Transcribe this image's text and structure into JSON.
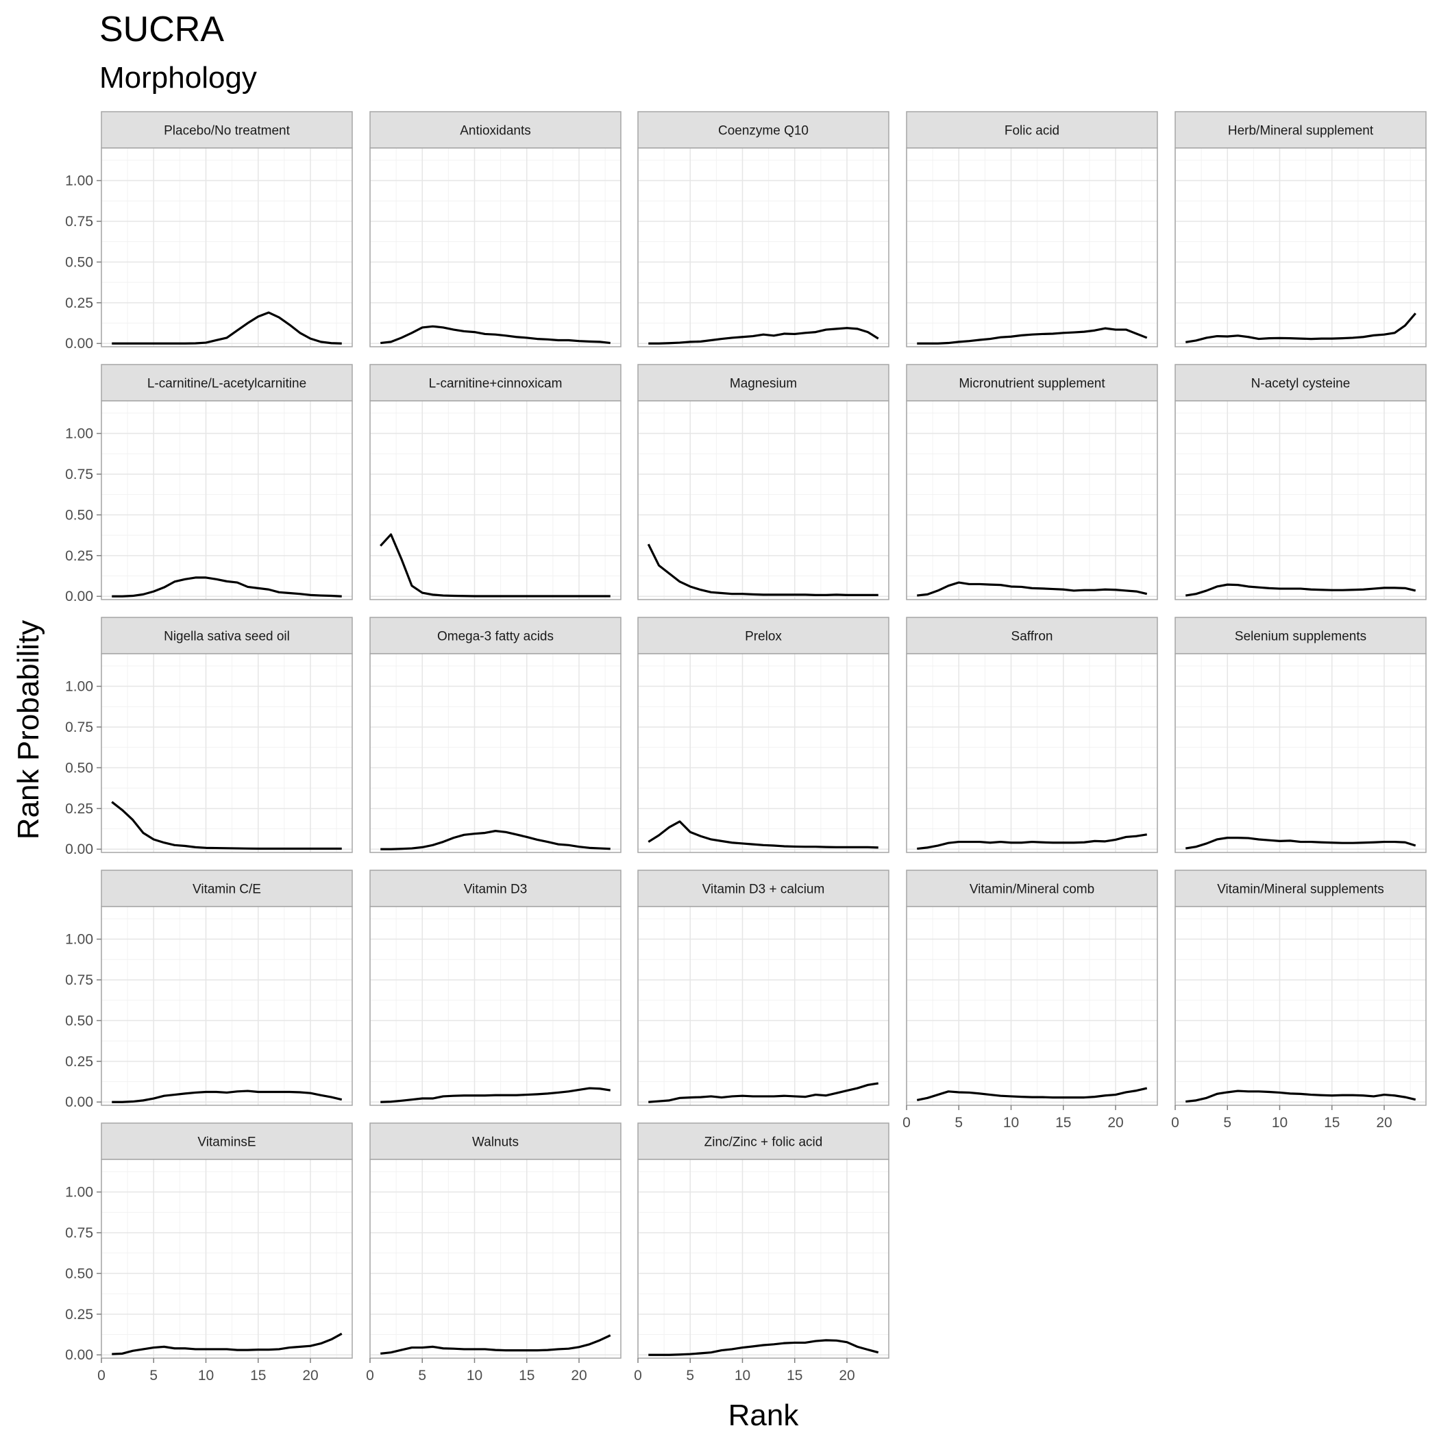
{
  "chart_data": {
    "type": "line",
    "title": "SUCRA",
    "subtitle": "Morphology",
    "xlabel": "Rank",
    "ylabel": "Rank Probability",
    "xlim": [
      0,
      24
    ],
    "ylim": [
      -0.02,
      1.2
    ],
    "x_ticks": [
      0,
      5,
      10,
      15,
      20
    ],
    "y_ticks": [
      0.0,
      0.25,
      0.5,
      0.75,
      1.0
    ],
    "y_tick_labels": [
      "0.00",
      "0.25",
      "0.50",
      "0.75",
      "1.00"
    ],
    "grid": true,
    "legend": "none",
    "x": [
      1,
      2,
      3,
      4,
      5,
      6,
      7,
      8,
      9,
      10,
      11,
      12,
      13,
      14,
      15,
      16,
      17,
      18,
      19,
      20,
      21,
      22,
      23
    ],
    "series": [
      {
        "name": "Placebo/No treatment",
        "values": [
          0,
          0,
          0,
          0,
          0,
          0,
          0,
          0,
          0.001,
          0.005,
          0.02,
          0.035,
          0.08,
          0.125,
          0.165,
          0.19,
          0.16,
          0.115,
          0.065,
          0.03,
          0.01,
          0.002,
          0
        ]
      },
      {
        "name": "Antioxidants",
        "values": [
          0.003,
          0.01,
          0.035,
          0.065,
          0.098,
          0.105,
          0.098,
          0.085,
          0.075,
          0.07,
          0.058,
          0.055,
          0.048,
          0.04,
          0.035,
          0.028,
          0.025,
          0.02,
          0.02,
          0.015,
          0.012,
          0.01,
          0.003
        ]
      },
      {
        "name": "Coenzyme Q10",
        "values": [
          0,
          0,
          0.002,
          0.005,
          0.01,
          0.012,
          0.02,
          0.028,
          0.035,
          0.04,
          0.045,
          0.055,
          0.048,
          0.06,
          0.058,
          0.065,
          0.07,
          0.085,
          0.09,
          0.095,
          0.09,
          0.07,
          0.03
        ]
      },
      {
        "name": "Folic acid",
        "values": [
          0,
          0,
          0,
          0.003,
          0.01,
          0.015,
          0.022,
          0.028,
          0.038,
          0.042,
          0.05,
          0.055,
          0.058,
          0.06,
          0.065,
          0.068,
          0.072,
          0.08,
          0.093,
          0.085,
          0.085,
          0.06,
          0.035
        ]
      },
      {
        "name": "Herb/Mineral supplement",
        "values": [
          0.008,
          0.018,
          0.035,
          0.045,
          0.043,
          0.048,
          0.04,
          0.028,
          0.032,
          0.033,
          0.032,
          0.03,
          0.028,
          0.03,
          0.03,
          0.032,
          0.035,
          0.04,
          0.05,
          0.055,
          0.065,
          0.11,
          0.185
        ]
      },
      {
        "name": "L-carnitine/L-acetylcarnitine",
        "values": [
          0,
          0,
          0.003,
          0.012,
          0.03,
          0.055,
          0.09,
          0.105,
          0.115,
          0.115,
          0.105,
          0.092,
          0.085,
          0.058,
          0.05,
          0.042,
          0.025,
          0.02,
          0.015,
          0.008,
          0.005,
          0.003,
          0
        ]
      },
      {
        "name": "L-carnitine+cinnoxicam",
        "values": [
          0.31,
          0.38,
          0.23,
          0.065,
          0.022,
          0.01,
          0.005,
          0.003,
          0.002,
          0.001,
          0.001,
          0.001,
          0.001,
          0.001,
          0.001,
          0.001,
          0.001,
          0.001,
          0.001,
          0.001,
          0.001,
          0.001,
          0.001
        ]
      },
      {
        "name": "Magnesium",
        "values": [
          0.32,
          0.19,
          0.14,
          0.09,
          0.06,
          0.04,
          0.025,
          0.02,
          0.015,
          0.015,
          0.012,
          0.01,
          0.01,
          0.01,
          0.01,
          0.01,
          0.008,
          0.008,
          0.01,
          0.008,
          0.008,
          0.008,
          0.008
        ]
      },
      {
        "name": "Micronutrient supplement",
        "values": [
          0.005,
          0.012,
          0.035,
          0.065,
          0.085,
          0.075,
          0.075,
          0.072,
          0.07,
          0.06,
          0.058,
          0.05,
          0.048,
          0.045,
          0.042,
          0.035,
          0.038,
          0.038,
          0.042,
          0.04,
          0.035,
          0.03,
          0.015
        ]
      },
      {
        "name": "N-acetyl cysteine",
        "values": [
          0.005,
          0.015,
          0.035,
          0.06,
          0.072,
          0.07,
          0.06,
          0.055,
          0.05,
          0.047,
          0.047,
          0.047,
          0.042,
          0.04,
          0.038,
          0.038,
          0.04,
          0.042,
          0.047,
          0.052,
          0.052,
          0.05,
          0.035
        ]
      },
      {
        "name": "Nigella sativa seed oil",
        "values": [
          0.29,
          0.24,
          0.18,
          0.1,
          0.06,
          0.04,
          0.025,
          0.02,
          0.012,
          0.008,
          0.007,
          0.006,
          0.005,
          0.004,
          0.003,
          0.003,
          0.003,
          0.003,
          0.003,
          0.003,
          0.003,
          0.003,
          0.003
        ]
      },
      {
        "name": "Omega-3 fatty acids",
        "values": [
          0,
          0,
          0.002,
          0.005,
          0.012,
          0.025,
          0.045,
          0.07,
          0.088,
          0.095,
          0.1,
          0.112,
          0.105,
          0.09,
          0.075,
          0.058,
          0.045,
          0.03,
          0.025,
          0.015,
          0.008,
          0.005,
          0.002
        ]
      },
      {
        "name": "Prelox",
        "values": [
          0.045,
          0.085,
          0.135,
          0.17,
          0.105,
          0.08,
          0.06,
          0.05,
          0.04,
          0.035,
          0.03,
          0.025,
          0.022,
          0.018,
          0.016,
          0.015,
          0.015,
          0.013,
          0.012,
          0.012,
          0.012,
          0.012,
          0.01
        ]
      },
      {
        "name": "Saffron",
        "values": [
          0.003,
          0.01,
          0.022,
          0.038,
          0.045,
          0.045,
          0.045,
          0.04,
          0.045,
          0.04,
          0.04,
          0.045,
          0.042,
          0.04,
          0.04,
          0.04,
          0.042,
          0.05,
          0.048,
          0.058,
          0.075,
          0.08,
          0.09
        ]
      },
      {
        "name": "Selenium supplements",
        "values": [
          0.005,
          0.015,
          0.035,
          0.06,
          0.07,
          0.07,
          0.068,
          0.06,
          0.055,
          0.05,
          0.052,
          0.045,
          0.045,
          0.042,
          0.04,
          0.038,
          0.038,
          0.04,
          0.042,
          0.045,
          0.045,
          0.042,
          0.022
        ]
      },
      {
        "name": "Vitamin C/E",
        "values": [
          0,
          0,
          0.003,
          0.01,
          0.022,
          0.038,
          0.045,
          0.052,
          0.058,
          0.062,
          0.062,
          0.058,
          0.065,
          0.068,
          0.062,
          0.062,
          0.062,
          0.062,
          0.06,
          0.055,
          0.042,
          0.03,
          0.015
        ]
      },
      {
        "name": "Vitamin D3",
        "values": [
          0,
          0.002,
          0.008,
          0.015,
          0.022,
          0.022,
          0.035,
          0.038,
          0.04,
          0.04,
          0.04,
          0.042,
          0.042,
          0.042,
          0.045,
          0.048,
          0.052,
          0.058,
          0.065,
          0.075,
          0.085,
          0.082,
          0.072
        ]
      },
      {
        "name": "Vitamin D3 + calcium",
        "values": [
          0,
          0.005,
          0.01,
          0.025,
          0.028,
          0.03,
          0.035,
          0.028,
          0.035,
          0.038,
          0.035,
          0.035,
          0.035,
          0.038,
          0.035,
          0.032,
          0.045,
          0.04,
          0.055,
          0.07,
          0.085,
          0.105,
          0.115
        ]
      },
      {
        "name": "Vitamin/Mineral comb",
        "values": [
          0.012,
          0.025,
          0.045,
          0.065,
          0.06,
          0.058,
          0.052,
          0.045,
          0.038,
          0.035,
          0.032,
          0.03,
          0.03,
          0.028,
          0.028,
          0.028,
          0.028,
          0.032,
          0.04,
          0.045,
          0.06,
          0.07,
          0.085
        ]
      },
      {
        "name": "Vitamin/Mineral supplements",
        "values": [
          0.003,
          0.01,
          0.025,
          0.05,
          0.06,
          0.068,
          0.065,
          0.065,
          0.062,
          0.058,
          0.052,
          0.05,
          0.045,
          0.042,
          0.04,
          0.042,
          0.042,
          0.04,
          0.035,
          0.045,
          0.04,
          0.03,
          0.015
        ]
      },
      {
        "name": "VitaminsE",
        "values": [
          0.005,
          0.008,
          0.025,
          0.035,
          0.045,
          0.05,
          0.04,
          0.04,
          0.035,
          0.035,
          0.035,
          0.035,
          0.03,
          0.03,
          0.032,
          0.032,
          0.035,
          0.045,
          0.05,
          0.055,
          0.07,
          0.095,
          0.13
        ]
      },
      {
        "name": "Walnuts",
        "values": [
          0.008,
          0.015,
          0.03,
          0.045,
          0.045,
          0.05,
          0.04,
          0.038,
          0.035,
          0.035,
          0.035,
          0.03,
          0.028,
          0.028,
          0.028,
          0.028,
          0.03,
          0.035,
          0.038,
          0.048,
          0.065,
          0.09,
          0.12
        ]
      },
      {
        "name": "Zinc/Zinc + folic acid",
        "values": [
          0,
          0,
          0,
          0.002,
          0.005,
          0.01,
          0.015,
          0.028,
          0.035,
          0.045,
          0.052,
          0.06,
          0.065,
          0.072,
          0.075,
          0.075,
          0.085,
          0.09,
          0.088,
          0.078,
          0.05,
          0.032,
          0.015
        ]
      }
    ]
  }
}
